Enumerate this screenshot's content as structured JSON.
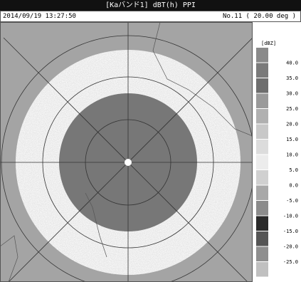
{
  "header": {
    "title": "[Kaバンド1] dBT(h) PPI",
    "datetime": "2014/09/19 13:27:50",
    "scan": "No.11 ( 20.00 deg )"
  },
  "legend": {
    "unit": "[dBZ]",
    "labels": [
      "40.0",
      "35.0",
      "30.0",
      "25.0",
      "20.0",
      "15.0",
      "10.0",
      "5.0",
      "0.0",
      "-5.0",
      "-10.0",
      "-15.0",
      "-20.0",
      "-25.0"
    ],
    "colors": [
      "#8a8a8a",
      "#7a7a7a",
      "#6e6e6e",
      "#9a9a9a",
      "#b0b0b0",
      "#c8c8c8",
      "#dcdcdc",
      "#ececec",
      "#d0d0d0",
      "#a8a8a8",
      "#8c8c8c",
      "#2a2a2a",
      "#555555",
      "#8f8f8f",
      "#c0c0c0"
    ]
  }
}
